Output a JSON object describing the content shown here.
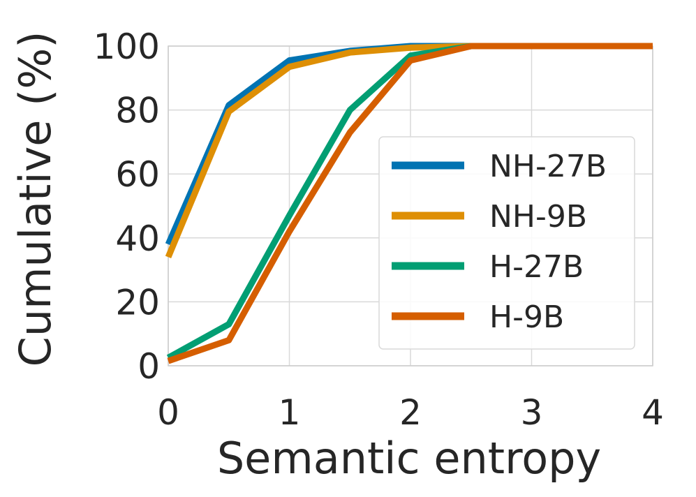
{
  "chart_data": {
    "type": "line",
    "xlabel": "Semantic entropy",
    "ylabel": "Cumulative (%)",
    "xlim": [
      0,
      4
    ],
    "ylim": [
      0,
      100
    ],
    "xticks": [
      0,
      1,
      2,
      3,
      4
    ],
    "yticks": [
      0,
      20,
      40,
      60,
      80,
      100
    ],
    "grid": true,
    "legend_position": "center-right",
    "x": [
      0,
      0.5,
      1,
      1.5,
      2,
      2.5,
      3,
      3.5,
      4
    ],
    "series": [
      {
        "name": "NH-27B",
        "color": "#0173b2",
        "values": [
          38,
          81.5,
          95.5,
          98.5,
          100,
          100,
          100,
          100,
          100
        ]
      },
      {
        "name": "NH-9B",
        "color": "#de8f05",
        "values": [
          34,
          79.5,
          93.5,
          98,
          99.5,
          100,
          100,
          100,
          100
        ]
      },
      {
        "name": "H-27B",
        "color": "#029e73",
        "values": [
          2.5,
          13,
          47,
          80,
          97,
          100,
          100,
          100,
          100
        ]
      },
      {
        "name": "H-9B",
        "color": "#d55e00",
        "values": [
          1.5,
          8,
          42,
          73,
          95.5,
          100,
          100,
          100,
          100
        ]
      }
    ]
  }
}
